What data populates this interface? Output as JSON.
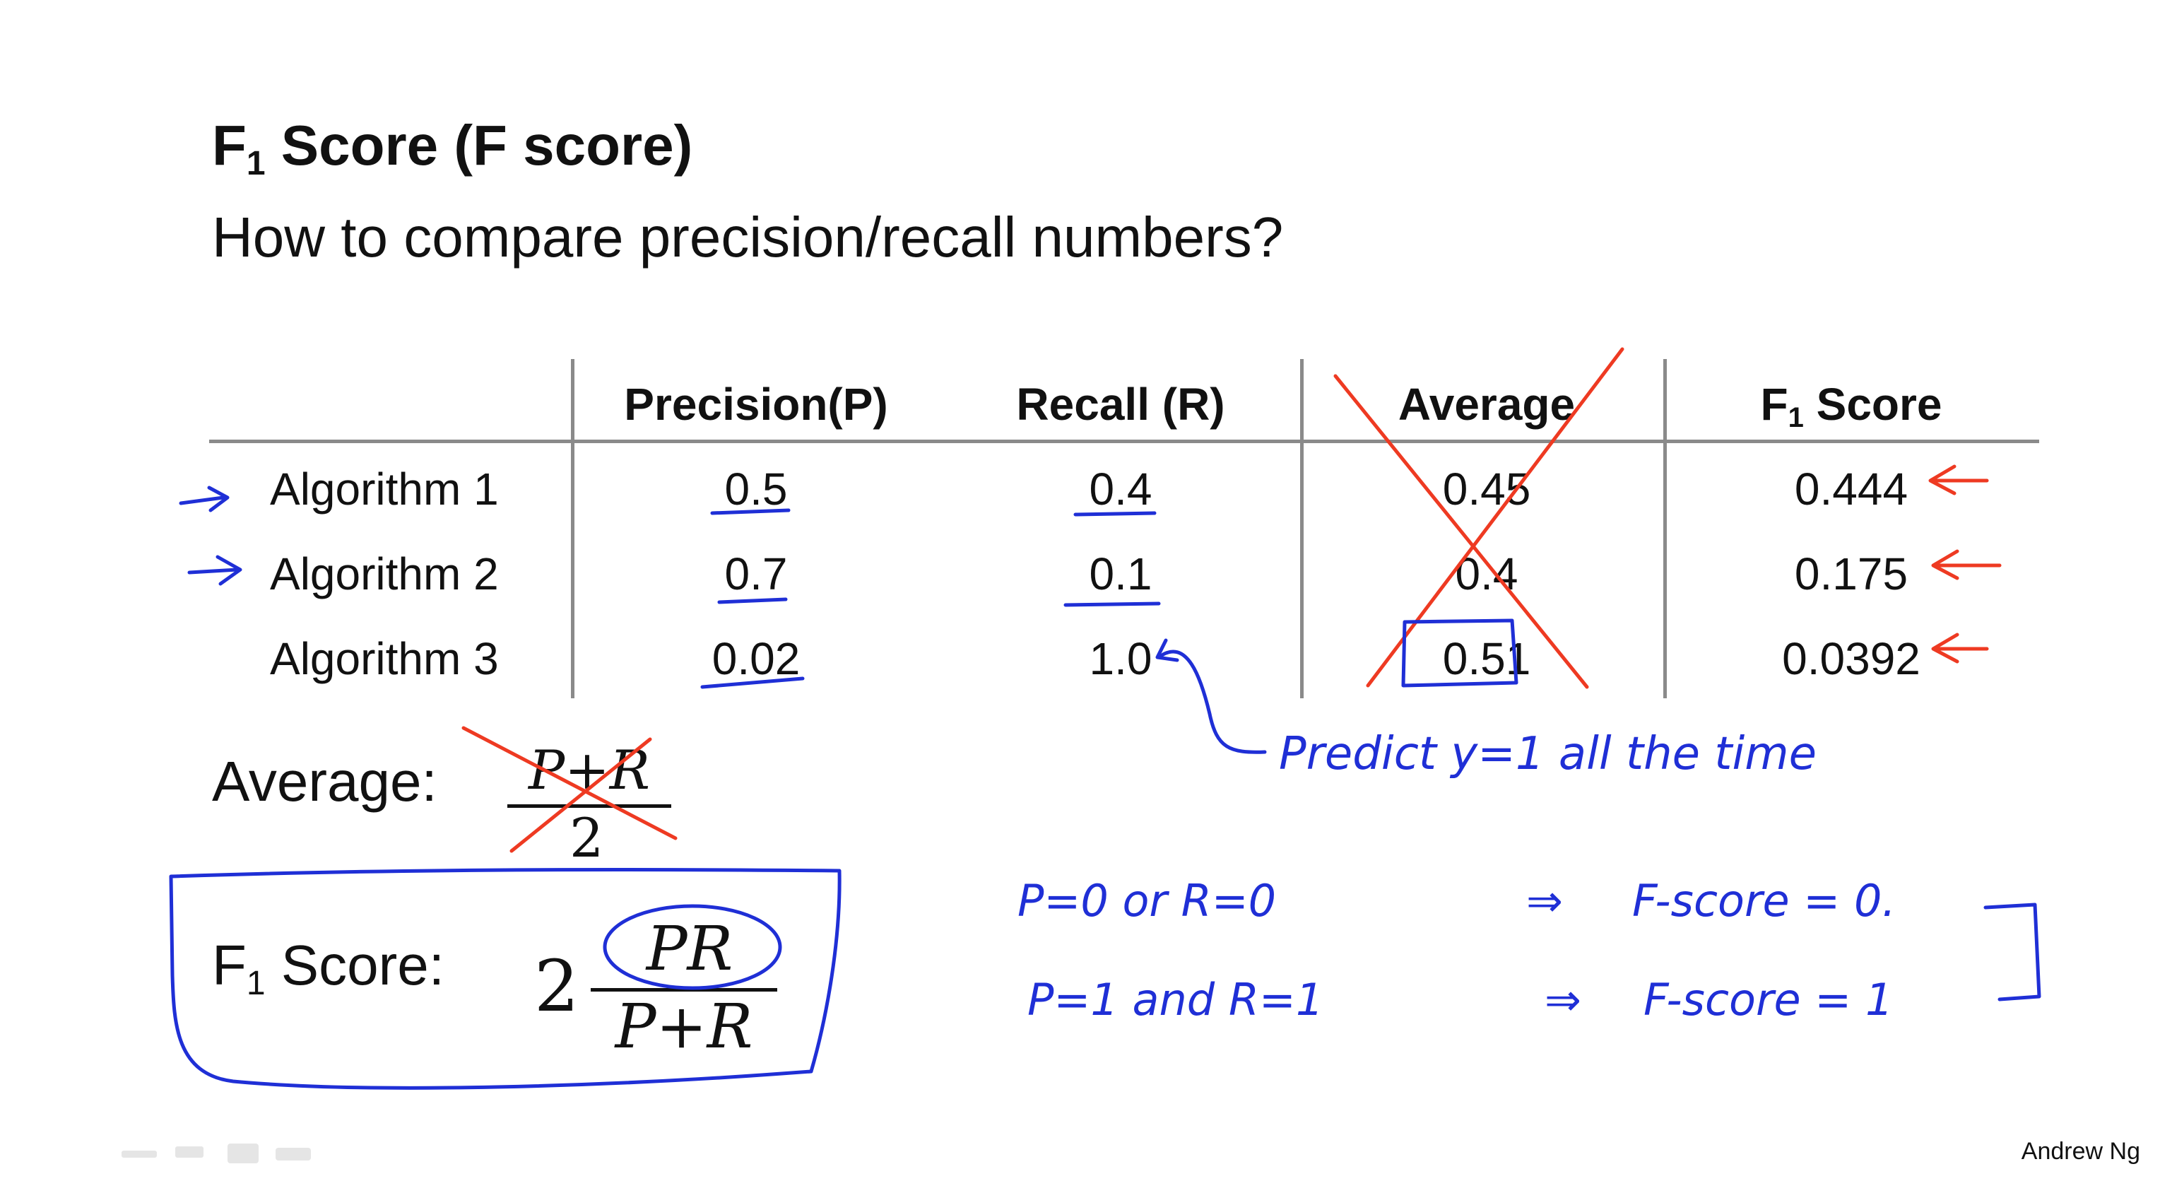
{
  "slide": {
    "title_main": "F",
    "title_sub": "1",
    "title_rest": " Score (F score)",
    "subtitle": "How to compare precision/recall numbers?",
    "author": "Andrew Ng"
  },
  "table": {
    "headers": {
      "precision": "Precision(P)",
      "recall": "Recall (R)",
      "average": "Average",
      "f1_main": "F",
      "f1_sub": "1",
      "f1_rest": " Score"
    },
    "rows": [
      {
        "name": "Algorithm 1",
        "precision": "0.5",
        "recall": "0.4",
        "average": "0.45",
        "f1": "0.444"
      },
      {
        "name": "Algorithm 2",
        "precision": "0.7",
        "recall": "0.1",
        "average": "0.4",
        "f1": "0.175"
      },
      {
        "name": "Algorithm 3",
        "precision": "0.02",
        "recall": "1.0",
        "average": "0.51",
        "f1": "0.0392"
      }
    ]
  },
  "formulas": {
    "average_label": "Average:",
    "average_numerator": "P+R",
    "average_denominator": "2",
    "f1_label_main": "F",
    "f1_label_sub": "1",
    "f1_label_rest": " Score:",
    "f1_coefficient": "2",
    "f1_numerator": "PR",
    "f1_denominator": "P+R"
  },
  "annotations": {
    "predict_note": "Predict y=1 all the time",
    "line1_condition": "P=0 or R=0",
    "line1_result": "F-score = 0.",
    "line2_condition": "P=1 and R=1",
    "line2_result": "F-score = 1"
  },
  "colors": {
    "pen_blue": "#1f2fd6",
    "pen_red": "#ee3a22",
    "rule_gray": "#8a8a8a"
  }
}
